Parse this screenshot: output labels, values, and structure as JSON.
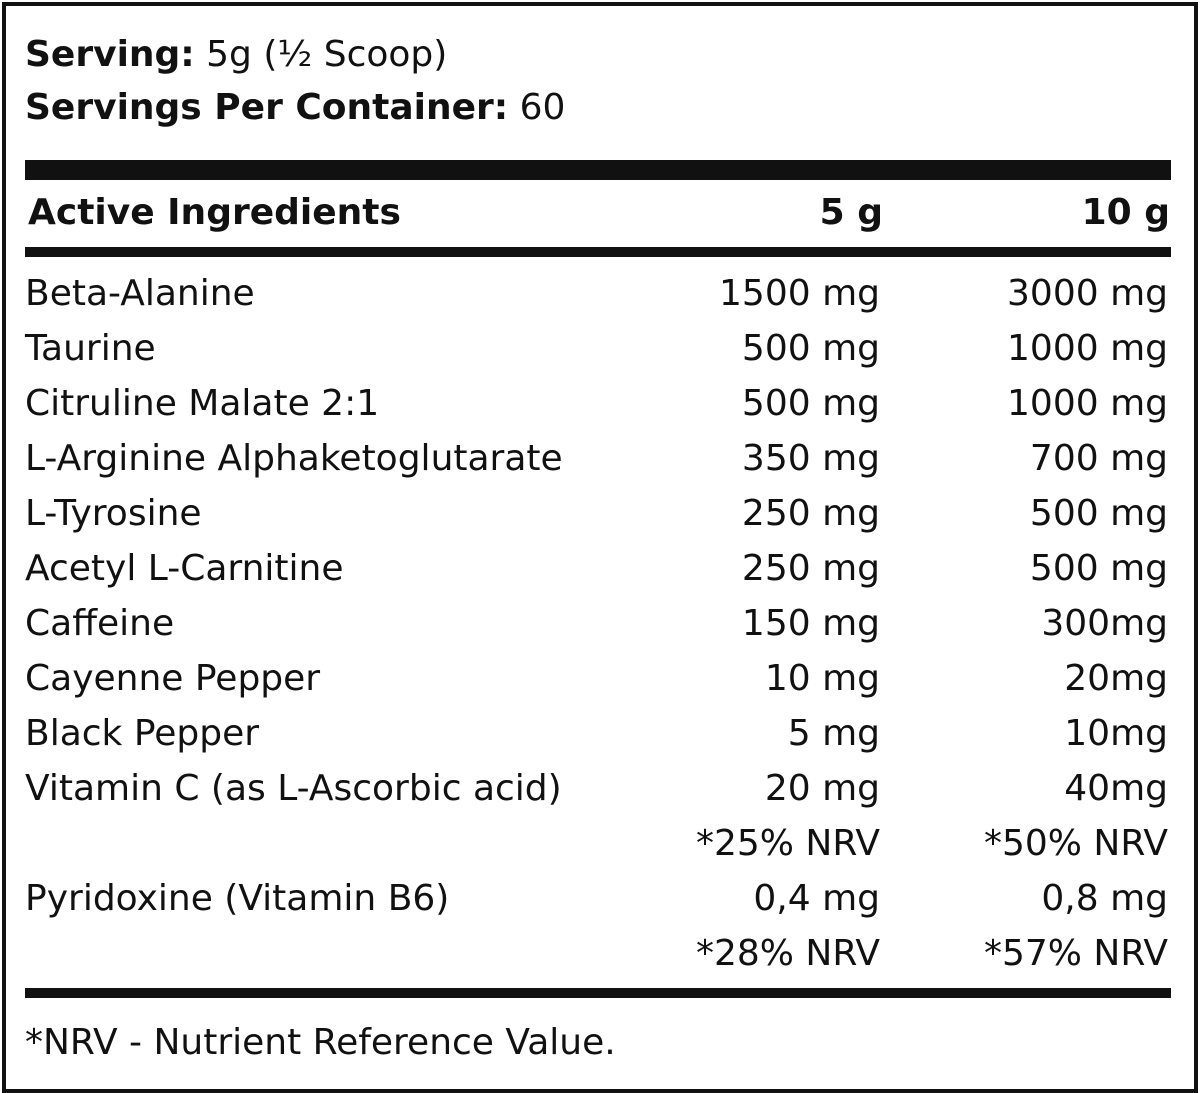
{
  "serving": {
    "label": "Serving:",
    "value": "5g (½ Scoop)"
  },
  "servings_per_container": {
    "label": "Servings Per Container:",
    "value": "60"
  },
  "table": {
    "headers": [
      "Active Ingredients",
      "5 g",
      "10 g"
    ],
    "rows": [
      [
        "Beta-Alanine",
        "1500 mg",
        "3000 mg"
      ],
      [
        "Taurine",
        "500 mg",
        "1000 mg"
      ],
      [
        "Citruline Malate 2:1",
        "500 mg",
        "1000 mg"
      ],
      [
        "L-Arginine Alphaketoglutarate",
        "350 mg",
        "700 mg"
      ],
      [
        "L-Tyrosine",
        "250 mg",
        "500 mg"
      ],
      [
        "Acetyl L-Carnitine",
        "250 mg",
        "500 mg"
      ],
      [
        "Caffeine",
        "150 mg",
        "300mg"
      ],
      [
        "Cayenne Pepper",
        "10 mg",
        "20mg"
      ],
      [
        "Black Pepper",
        "5 mg",
        "10mg"
      ],
      [
        "Vitamin C (as L-Ascorbic acid)",
        "20 mg",
        "40mg"
      ],
      [
        "",
        "*25% NRV",
        "*50% NRV"
      ],
      [
        "Pyridoxine (Vitamin B6)",
        "0,4 mg",
        "0,8 mg"
      ],
      [
        "",
        "*28% NRV",
        "*57% NRV"
      ]
    ]
  },
  "footnote": "*NRV - Nutrient Reference Value."
}
